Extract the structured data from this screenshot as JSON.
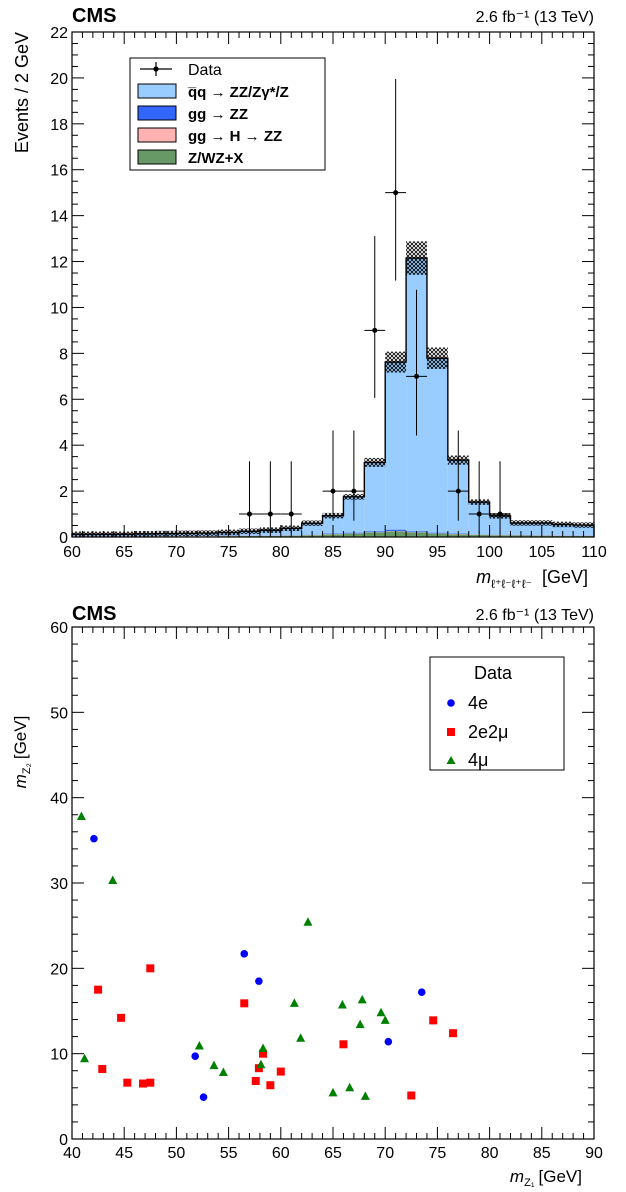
{
  "colors": {
    "qq": "#99ccff",
    "gg": "#3366ff",
    "ggH": "#ffb2b2",
    "zx": "#669966",
    "e4": "#0000ff",
    "e2mu2": "#ff0000",
    "mu4": "#008000"
  },
  "chart_data": [
    {
      "type": "bar",
      "subtype": "stacked histogram with data points",
      "title": "CMS",
      "lumi_label": "2.6 fb⁻¹ (13 TeV)",
      "xlabel": "m_{ℓ+ℓ−ℓ+ℓ−}",
      "xlabel_unit": "[GeV]",
      "ylabel": "Events / 2 GeV",
      "xlim": [
        60,
        110
      ],
      "ylim": [
        0,
        22
      ],
      "x_ticks": [
        "60",
        "65",
        "70",
        "75",
        "80",
        "85",
        "90",
        "95",
        "100",
        "105",
        "110"
      ],
      "y_ticks": [
        "0",
        "2",
        "4",
        "6",
        "8",
        "10",
        "12",
        "14",
        "16",
        "18",
        "20",
        "22"
      ],
      "legend": {
        "position": "top-left",
        "entries": [
          {
            "key": "data",
            "label": "Data"
          },
          {
            "key": "qq",
            "label": "q̅q → ZZ/Zγ*/Z"
          },
          {
            "key": "gg",
            "label": "gg → ZZ"
          },
          {
            "key": "ggH",
            "label": "gg → H → ZZ"
          },
          {
            "key": "zx",
            "label": "Z/WZ+X"
          }
        ]
      },
      "bin_edges": [
        60,
        62,
        64,
        66,
        68,
        70,
        72,
        74,
        76,
        78,
        80,
        82,
        84,
        86,
        88,
        90,
        92,
        94,
        96,
        98,
        100,
        102,
        104,
        106,
        108,
        110
      ],
      "series": [
        {
          "key": "zx",
          "name": "Z/WZ+X",
          "values": [
            0.02,
            0.02,
            0.02,
            0.03,
            0.03,
            0.03,
            0.03,
            0.04,
            0.05,
            0.05,
            0.06,
            0.08,
            0.12,
            0.15,
            0.2,
            0.25,
            0.2,
            0.15,
            0.12,
            0.1,
            0.08,
            0.07,
            0.06,
            0.05,
            0.05
          ]
        },
        {
          "key": "ggH",
          "name": "gg → H → ZZ",
          "values": [
            0.01,
            0.01,
            0.01,
            0.01,
            0.01,
            0.01,
            0.01,
            0.01,
            0.01,
            0.01,
            0.01,
            0.01,
            0.01,
            0.01,
            0.01,
            0.01,
            0.01,
            0.01,
            0.01,
            0.01,
            0.01,
            0.01,
            0.01,
            0.01,
            0.01
          ]
        },
        {
          "key": "gg",
          "name": "gg → ZZ",
          "values": [
            0.01,
            0.01,
            0.01,
            0.01,
            0.01,
            0.01,
            0.01,
            0.01,
            0.01,
            0.01,
            0.01,
            0.01,
            0.02,
            0.03,
            0.04,
            0.06,
            0.04,
            0.03,
            0.02,
            0.01,
            0.01,
            0.01,
            0.01,
            0.01,
            0.01
          ]
        },
        {
          "key": "qq",
          "name": "q̅q → ZZ/Zγ*/Z",
          "values": [
            0.08,
            0.08,
            0.08,
            0.09,
            0.1,
            0.11,
            0.12,
            0.14,
            0.18,
            0.23,
            0.3,
            0.5,
            0.78,
            1.56,
            3.0,
            7.3,
            11.9,
            7.6,
            3.2,
            1.4,
            0.82,
            0.52,
            0.53,
            0.48,
            0.45
          ]
        }
      ],
      "data_points": [
        {
          "x": 77,
          "y": 1,
          "err_low": 0.83,
          "err_high": 2.3
        },
        {
          "x": 79,
          "y": 1,
          "err_low": 0.83,
          "err_high": 2.3
        },
        {
          "x": 81,
          "y": 1,
          "err_low": 0.83,
          "err_high": 2.3
        },
        {
          "x": 85,
          "y": 2,
          "err_low": 1.29,
          "err_high": 2.64
        },
        {
          "x": 87,
          "y": 2,
          "err_low": 1.29,
          "err_high": 2.64
        },
        {
          "x": 89,
          "y": 9,
          "err_low": 2.94,
          "err_high": 4.11
        },
        {
          "x": 91,
          "y": 15,
          "err_low": 3.83,
          "err_high": 4.95
        },
        {
          "x": 93,
          "y": 7,
          "err_low": 2.58,
          "err_high": 3.77
        },
        {
          "x": 97,
          "y": 2,
          "err_low": 1.29,
          "err_high": 2.64
        },
        {
          "x": 99,
          "y": 1,
          "err_low": 0.83,
          "err_high": 2.3
        },
        {
          "x": 101,
          "y": 1,
          "err_low": 0.83,
          "err_high": 2.3
        }
      ]
    },
    {
      "type": "scatter",
      "title": "CMS",
      "lumi_label": "2.6 fb⁻¹ (13 TeV)",
      "xlabel": "m_{Z1}",
      "xlabel_unit": "[GeV]",
      "ylabel": "m_{Z2}",
      "ylabel_unit": "[GeV]",
      "xlim": [
        40,
        90
      ],
      "ylim": [
        0,
        60
      ],
      "x_ticks": [
        "40",
        "45",
        "50",
        "55",
        "60",
        "65",
        "70",
        "75",
        "80",
        "85",
        "90"
      ],
      "y_ticks": [
        "0",
        "10",
        "20",
        "30",
        "40",
        "50",
        "60"
      ],
      "legend": {
        "position": "top-right",
        "title": "Data"
      },
      "series": [
        {
          "key": "e4",
          "name": "4e",
          "marker": "circle",
          "points": [
            [
              42.1,
              35.2
            ],
            [
              51.8,
              9.7
            ],
            [
              52.6,
              4.9
            ],
            [
              56.5,
              21.7
            ],
            [
              57.9,
              18.5
            ],
            [
              70.3,
              11.4
            ],
            [
              73.5,
              17.2
            ]
          ]
        },
        {
          "key": "e2mu2",
          "name": "2e2μ",
          "marker": "square",
          "points": [
            [
              42.5,
              17.5
            ],
            [
              42.9,
              8.2
            ],
            [
              44.7,
              14.2
            ],
            [
              45.3,
              6.6
            ],
            [
              46.8,
              6.5
            ],
            [
              47.5,
              6.6
            ],
            [
              47.5,
              20.0
            ],
            [
              56.5,
              15.9
            ],
            [
              57.6,
              6.8
            ],
            [
              57.9,
              8.3
            ],
            [
              58.3,
              10.0
            ],
            [
              59.0,
              6.3
            ],
            [
              60.0,
              7.9
            ],
            [
              66.0,
              11.1
            ],
            [
              72.5,
              5.1
            ],
            [
              74.6,
              13.9
            ],
            [
              76.5,
              12.4
            ]
          ]
        },
        {
          "key": "mu4",
          "name": "4μ",
          "marker": "triangle",
          "points": [
            [
              40.9,
              37.8
            ],
            [
              41.2,
              9.4
            ],
            [
              43.9,
              30.3
            ],
            [
              52.2,
              10.9
            ],
            [
              53.6,
              8.6
            ],
            [
              54.5,
              7.8
            ],
            [
              58.1,
              8.7
            ],
            [
              58.3,
              10.6
            ],
            [
              61.3,
              15.9
            ],
            [
              61.9,
              11.8
            ],
            [
              62.6,
              25.4
            ],
            [
              65.0,
              5.4
            ],
            [
              65.9,
              15.7
            ],
            [
              66.6,
              6.0
            ],
            [
              67.6,
              13.4
            ],
            [
              67.8,
              16.3
            ],
            [
              68.1,
              5.0
            ],
            [
              69.6,
              14.8
            ],
            [
              70.0,
              13.9
            ]
          ]
        }
      ]
    }
  ]
}
